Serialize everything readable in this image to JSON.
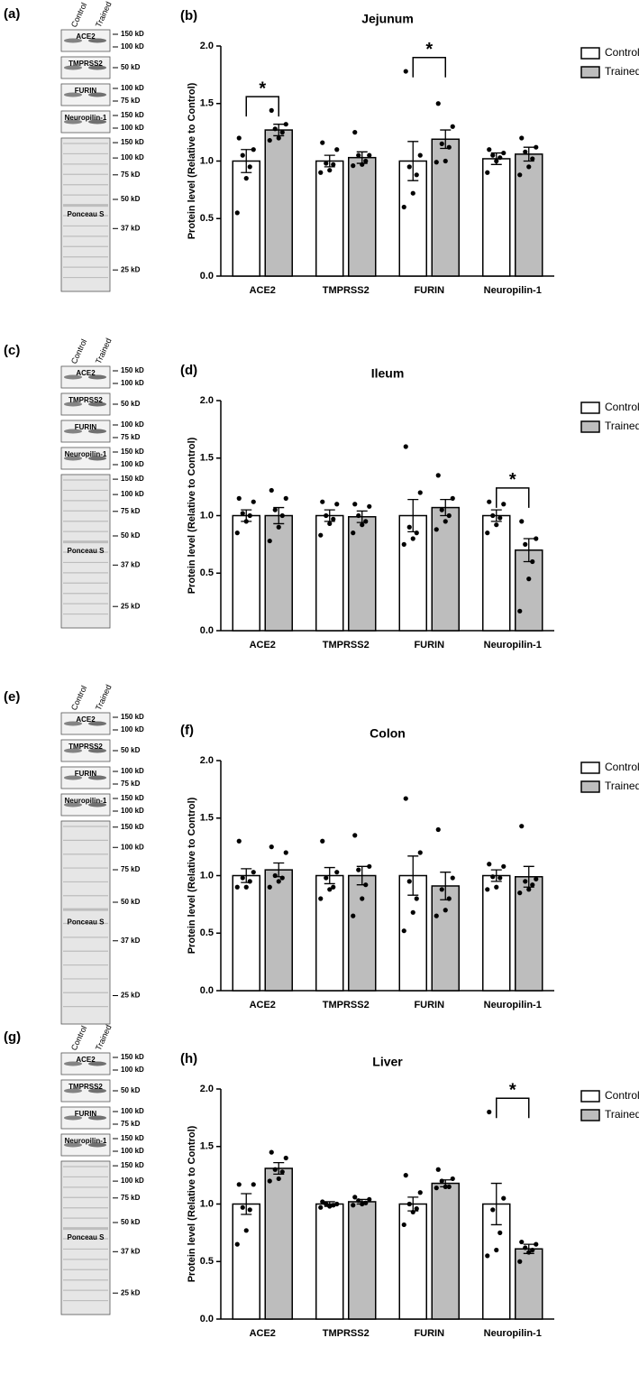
{
  "chart_data": [
    {
      "type": "bar",
      "panel": "(b)",
      "title": "Jejunum",
      "y_label": "Protein level (Relative to Control)",
      "categories": [
        "ACE2",
        "TMPRSS2",
        "FURIN",
        "Neuropilin-1"
      ],
      "series": [
        {
          "name": "Control",
          "color": "#ffffff",
          "values": [
            1.0,
            1.0,
            1.0,
            1.02
          ],
          "errors": [
            0.1,
            0.05,
            0.17,
            0.05
          ],
          "points": [
            [
              1.2,
              1.1,
              1.05,
              0.95,
              0.85,
              0.55
            ],
            [
              1.16,
              1.1,
              0.98,
              0.97,
              0.92,
              0.9
            ],
            [
              1.78,
              1.05,
              0.95,
              0.88,
              0.72,
              0.6
            ],
            [
              1.1,
              1.07,
              1.05,
              1.03,
              1.0,
              0.9
            ]
          ]
        },
        {
          "name": "Trained",
          "color": "#bdbdbd",
          "values": [
            1.27,
            1.03,
            1.19,
            1.06
          ],
          "errors": [
            0.05,
            0.05,
            0.08,
            0.06
          ],
          "points": [
            [
              1.44,
              1.32,
              1.28,
              1.25,
              1.2,
              1.18
            ],
            [
              1.25,
              1.05,
              1.05,
              1.0,
              0.97,
              0.96
            ],
            [
              1.5,
              1.3,
              1.15,
              1.12,
              1.0,
              0.99
            ],
            [
              1.2,
              1.12,
              1.08,
              1.02,
              0.95,
              0.88
            ]
          ]
        }
      ],
      "significance": [
        {
          "category": 0,
          "label": "*"
        },
        {
          "category": 2,
          "label": "*"
        }
      ],
      "ylim": [
        0,
        2
      ],
      "yticks": [
        {
          "value": 0,
          "label": "0.0"
        },
        {
          "value": 0.5,
          "label": "0.5"
        },
        {
          "value": 1,
          "label": "1.0"
        },
        {
          "value": 1.5,
          "label": "1.5"
        },
        {
          "value": 2,
          "label": "2.0"
        }
      ]
    },
    {
      "type": "bar",
      "panel": "(d)",
      "title": "Ileum",
      "y_label": "Protein level (Relative to Control)",
      "categories": [
        "ACE2",
        "TMPRSS2",
        "FURIN",
        "Neuropilin-1"
      ],
      "series": [
        {
          "name": "Control",
          "color": "#ffffff",
          "values": [
            1.0,
            1.0,
            1.0,
            1.0
          ],
          "errors": [
            0.05,
            0.05,
            0.14,
            0.05
          ],
          "points": [
            [
              1.15,
              1.12,
              1.02,
              1.0,
              0.95,
              0.85
            ],
            [
              1.12,
              1.1,
              1.0,
              0.97,
              0.93,
              0.83
            ],
            [
              1.6,
              1.2,
              0.9,
              0.85,
              0.8,
              0.75
            ],
            [
              1.12,
              1.1,
              1.0,
              0.98,
              0.92,
              0.85
            ]
          ]
        },
        {
          "name": "Trained",
          "color": "#bdbdbd",
          "values": [
            1.0,
            0.99,
            1.07,
            0.7
          ],
          "errors": [
            0.07,
            0.05,
            0.07,
            0.1
          ],
          "points": [
            [
              1.22,
              1.15,
              1.05,
              1.0,
              0.9,
              0.78
            ],
            [
              1.1,
              1.08,
              1.0,
              0.95,
              0.92,
              0.85
            ],
            [
              1.35,
              1.15,
              1.05,
              1.0,
              0.95,
              0.88
            ],
            [
              0.95,
              0.8,
              0.75,
              0.6,
              0.45,
              0.17
            ]
          ]
        }
      ],
      "significance": [
        {
          "category": 3,
          "label": "*"
        }
      ],
      "ylim": [
        0,
        2
      ],
      "yticks": [
        {
          "value": 0,
          "label": "0.0"
        },
        {
          "value": 0.5,
          "label": "0.5"
        },
        {
          "value": 1,
          "label": "1.0"
        },
        {
          "value": 1.5,
          "label": "1.5"
        },
        {
          "value": 2,
          "label": "2.0"
        }
      ]
    },
    {
      "type": "bar",
      "panel": "(f)",
      "title": "Colon",
      "y_label": "Protein level (Relative to Control)",
      "categories": [
        "ACE2",
        "TMPRSS2",
        "FURIN",
        "Neuropilin-1"
      ],
      "series": [
        {
          "name": "Control",
          "color": "#ffffff",
          "values": [
            1.0,
            1.0,
            1.0,
            1.0
          ],
          "errors": [
            0.06,
            0.07,
            0.17,
            0.05
          ],
          "points": [
            [
              1.3,
              1.03,
              0.98,
              0.95,
              0.9,
              0.9
            ],
            [
              1.3,
              1.03,
              0.98,
              0.9,
              0.88,
              0.8
            ],
            [
              1.67,
              1.2,
              0.95,
              0.8,
              0.68,
              0.52
            ],
            [
              1.1,
              1.08,
              0.99,
              0.98,
              0.9,
              0.88
            ]
          ]
        },
        {
          "name": "Trained",
          "color": "#bdbdbd",
          "values": [
            1.05,
            1.0,
            0.91,
            0.99
          ],
          "errors": [
            0.06,
            0.08,
            0.12,
            0.09
          ],
          "points": [
            [
              1.25,
              1.2,
              1.0,
              0.98,
              0.95,
              0.9
            ],
            [
              1.35,
              1.08,
              1.05,
              0.92,
              0.8,
              0.65
            ],
            [
              1.4,
              0.98,
              0.88,
              0.8,
              0.7,
              0.65
            ],
            [
              1.43,
              0.97,
              0.95,
              0.92,
              0.88,
              0.85
            ]
          ]
        }
      ],
      "significance": [],
      "ylim": [
        0,
        2
      ],
      "yticks": [
        {
          "value": 0,
          "label": "0.0"
        },
        {
          "value": 0.5,
          "label": "0.5"
        },
        {
          "value": 1,
          "label": "1.0"
        },
        {
          "value": 1.5,
          "label": "1.5"
        },
        {
          "value": 2,
          "label": "2.0"
        }
      ]
    },
    {
      "type": "bar",
      "panel": "(h)",
      "title": "Liver",
      "y_label": "Protein level (Relative to Control)",
      "categories": [
        "ACE2",
        "TMPRSS2",
        "FURIN",
        "Neuropilin-1"
      ],
      "series": [
        {
          "name": "Control",
          "color": "#ffffff",
          "values": [
            1.0,
            1.0,
            1.0,
            1.0
          ],
          "errors": [
            0.09,
            0.02,
            0.06,
            0.18
          ],
          "points": [
            [
              1.17,
              1.17,
              0.97,
              0.95,
              0.77,
              0.65
            ],
            [
              1.02,
              1.0,
              1.0,
              0.99,
              0.98,
              0.97
            ],
            [
              1.25,
              1.1,
              1.0,
              0.96,
              0.93,
              0.82
            ],
            [
              1.8,
              1.05,
              0.95,
              0.75,
              0.6,
              0.55
            ]
          ]
        },
        {
          "name": "Trained",
          "color": "#bdbdbd",
          "values": [
            1.31,
            1.02,
            1.18,
            0.61
          ],
          "errors": [
            0.05,
            0.02,
            0.03,
            0.04
          ],
          "points": [
            [
              1.45,
              1.4,
              1.3,
              1.28,
              1.22,
              1.2
            ],
            [
              1.06,
              1.04,
              1.03,
              1.01,
              1.0,
              0.99
            ],
            [
              1.3,
              1.22,
              1.2,
              1.15,
              1.15,
              1.14
            ],
            [
              0.67,
              0.65,
              0.62,
              0.6,
              0.58,
              0.5
            ]
          ]
        }
      ],
      "significance": [
        {
          "category": 3,
          "label": "*"
        }
      ],
      "ylim": [
        0,
        2
      ],
      "yticks": [
        {
          "value": 0,
          "label": "0.0"
        },
        {
          "value": 0.5,
          "label": "0.5"
        },
        {
          "value": 1,
          "label": "1.0"
        },
        {
          "value": 1.5,
          "label": "1.5"
        },
        {
          "value": 2,
          "label": "2.0"
        }
      ]
    }
  ],
  "blots": [
    {
      "panel": "(a)",
      "columns": [
        "Control",
        "Trained"
      ],
      "rows": [
        {
          "name": "ACE2",
          "markers": [
            "150 kD",
            "100 kD"
          ]
        },
        {
          "name": "TMPRSS2",
          "markers": [
            "50 kD"
          ]
        },
        {
          "name": "FURIN",
          "markers": [
            "100 kD",
            "75 kD"
          ]
        },
        {
          "name": "Neuropilin-1",
          "markers": [
            "150 kD",
            "100 kD"
          ]
        }
      ],
      "loading": {
        "name": "Ponceau S",
        "markers": [
          "150 kD",
          "100 kD",
          "75 kD",
          "50 kD",
          "37 kD",
          "25 kD"
        ]
      }
    },
    {
      "panel": "(c)",
      "columns": [
        "Control",
        "Trained"
      ],
      "rows": [
        {
          "name": "ACE2",
          "markers": [
            "150 kD",
            "100 kD"
          ]
        },
        {
          "name": "TMPRSS2",
          "markers": [
            "50 kD"
          ]
        },
        {
          "name": "FURIN",
          "markers": [
            "100 kD",
            "75 kD"
          ]
        },
        {
          "name": "Neuropilin-1",
          "markers": [
            "150 kD",
            "100 kD"
          ]
        }
      ],
      "loading": {
        "name": "Ponceau S",
        "markers": [
          "150 kD",
          "100 kD",
          "75 kD",
          "50 kD",
          "37 kD",
          "25 kD"
        ]
      }
    },
    {
      "panel": "(e)",
      "columns": [
        "Control",
        "Trained"
      ],
      "rows": [
        {
          "name": "ACE2",
          "markers": [
            "150 kD",
            "100 kD"
          ]
        },
        {
          "name": "TMPRSS2",
          "markers": [
            "50 kD"
          ]
        },
        {
          "name": "FURIN",
          "markers": [
            "100 kD",
            "75 kD"
          ]
        },
        {
          "name": "Neuropilin-1",
          "markers": [
            "150 kD",
            "100 kD"
          ]
        }
      ],
      "loading": {
        "name": "Ponceau S",
        "markers": [
          "150 kD",
          "100 kD",
          "75 kD",
          "50 kD",
          "37 kD",
          "25 kD"
        ]
      }
    },
    {
      "panel": "(g)",
      "columns": [
        "Control",
        "Trained"
      ],
      "rows": [
        {
          "name": "ACE2",
          "markers": [
            "150 kD",
            "100 kD"
          ]
        },
        {
          "name": "TMPRSS2",
          "markers": [
            "50 kD"
          ]
        },
        {
          "name": "FURIN",
          "markers": [
            "100 kD",
            "75 kD"
          ]
        },
        {
          "name": "Neuropilin-1",
          "markers": [
            "150 kD",
            "100 kD"
          ]
        }
      ],
      "loading": {
        "name": "Ponceau S",
        "markers": [
          "150 kD",
          "100 kD",
          "75 kD",
          "50 kD",
          "37 kD",
          "25 kD"
        ]
      }
    }
  ]
}
